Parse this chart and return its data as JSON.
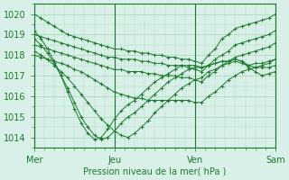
{
  "title": "",
  "xlabel": "Pression niveau de la mer( hPa )",
  "ylabel": "",
  "bg_color": "#d8f0e8",
  "line_color": "#1a7a2a",
  "grid_color": "#b0d8c0",
  "tick_labels": [
    "Mer",
    "Jeu",
    "Ven",
    "Sam"
  ],
  "ylim": [
    1013.5,
    1020.5
  ],
  "xlim": [
    0,
    72
  ],
  "yticks": [
    1014,
    1015,
    1016,
    1017,
    1018,
    1019,
    1020
  ],
  "xticks": [
    0,
    24,
    48,
    72
  ],
  "series": [
    [
      1020.0,
      1019.8,
      1019.6,
      1019.4,
      1019.2,
      1019.0,
      1018.9,
      1018.8,
      1018.7,
      1018.6,
      1018.5,
      1018.4,
      1018.3,
      1018.3,
      1018.2,
      1018.2,
      1018.1,
      1018.1,
      1018.0,
      1018.0,
      1017.9,
      1017.9,
      1017.8,
      1017.8,
      1017.7,
      1017.6,
      1018.0,
      1018.3,
      1018.8,
      1019.0,
      1019.3,
      1019.4,
      1019.5,
      1019.6,
      1019.7,
      1019.8,
      1020.0
    ],
    [
      1019.0,
      1018.9,
      1018.8,
      1018.7,
      1018.6,
      1018.5,
      1018.4,
      1018.3,
      1018.2,
      1018.1,
      1018.0,
      1017.9,
      1017.9,
      1017.8,
      1017.8,
      1017.8,
      1017.7,
      1017.7,
      1017.6,
      1017.6,
      1017.5,
      1017.5,
      1017.5,
      1017.4,
      1017.3,
      1017.2,
      1017.5,
      1017.8,
      1018.0,
      1018.2,
      1018.5,
      1018.6,
      1018.7,
      1018.8,
      1018.9,
      1019.0,
      1019.2
    ],
    [
      1018.5,
      1018.4,
      1018.3,
      1018.2,
      1018.1,
      1018.0,
      1017.9,
      1017.8,
      1017.7,
      1017.6,
      1017.5,
      1017.4,
      1017.3,
      1017.3,
      1017.2,
      1017.2,
      1017.2,
      1017.1,
      1017.1,
      1017.0,
      1017.0,
      1017.0,
      1016.9,
      1016.9,
      1016.8,
      1016.7,
      1017.0,
      1017.2,
      1017.5,
      1017.7,
      1017.9,
      1018.0,
      1018.1,
      1018.2,
      1018.3,
      1018.4,
      1018.6
    ],
    [
      1018.0,
      1017.9,
      1017.8,
      1017.7,
      1017.6,
      1017.5,
      1017.3,
      1017.2,
      1017.0,
      1016.8,
      1016.6,
      1016.4,
      1016.2,
      1016.1,
      1016.0,
      1015.9,
      1015.9,
      1015.8,
      1015.8,
      1015.8,
      1015.8,
      1015.8,
      1015.8,
      1015.8,
      1015.7,
      1015.7,
      1016.0,
      1016.2,
      1016.5,
      1016.8,
      1017.0,
      1017.2,
      1017.3,
      1017.4,
      1017.5,
      1017.6,
      1017.8
    ],
    [
      1018.2,
      1018.0,
      1017.8,
      1017.5,
      1017.2,
      1016.9,
      1016.5,
      1016.1,
      1015.7,
      1015.3,
      1014.9,
      1014.6,
      1014.3,
      1014.1,
      1014.0,
      1014.2,
      1014.5,
      1014.8,
      1015.2,
      1015.5,
      1015.8,
      1016.1,
      1016.4,
      1016.6,
      1016.8,
      1016.9,
      1017.2,
      1017.3,
      1017.5,
      1017.6,
      1017.7,
      1017.6,
      1017.5,
      1017.6,
      1017.6,
      1017.7,
      1017.8
    ],
    [
      1018.8,
      1018.5,
      1018.1,
      1017.6,
      1017.0,
      1016.4,
      1015.7,
      1015.0,
      1014.5,
      1014.1,
      1013.9,
      1014.0,
      1014.3,
      1014.7,
      1015.0,
      1015.2,
      1015.5,
      1015.8,
      1016.1,
      1016.4,
      1016.7,
      1016.9,
      1017.1,
      1017.3,
      1017.4,
      1017.4,
      1017.5,
      1017.6,
      1017.7,
      1017.7,
      1017.8,
      1017.7,
      1017.5,
      1017.4,
      1017.4,
      1017.4,
      1017.5
    ],
    [
      1019.2,
      1018.8,
      1018.3,
      1017.7,
      1017.0,
      1016.2,
      1015.4,
      1014.7,
      1014.2,
      1013.9,
      1014.0,
      1014.4,
      1014.9,
      1015.3,
      1015.6,
      1015.8,
      1016.1,
      1016.4,
      1016.7,
      1016.9,
      1017.1,
      1017.3,
      1017.5,
      1017.5,
      1017.5,
      1017.4,
      1017.5,
      1017.6,
      1017.7,
      1017.7,
      1017.8,
      1017.7,
      1017.4,
      1017.2,
      1017.0,
      1017.1,
      1017.2
    ]
  ]
}
